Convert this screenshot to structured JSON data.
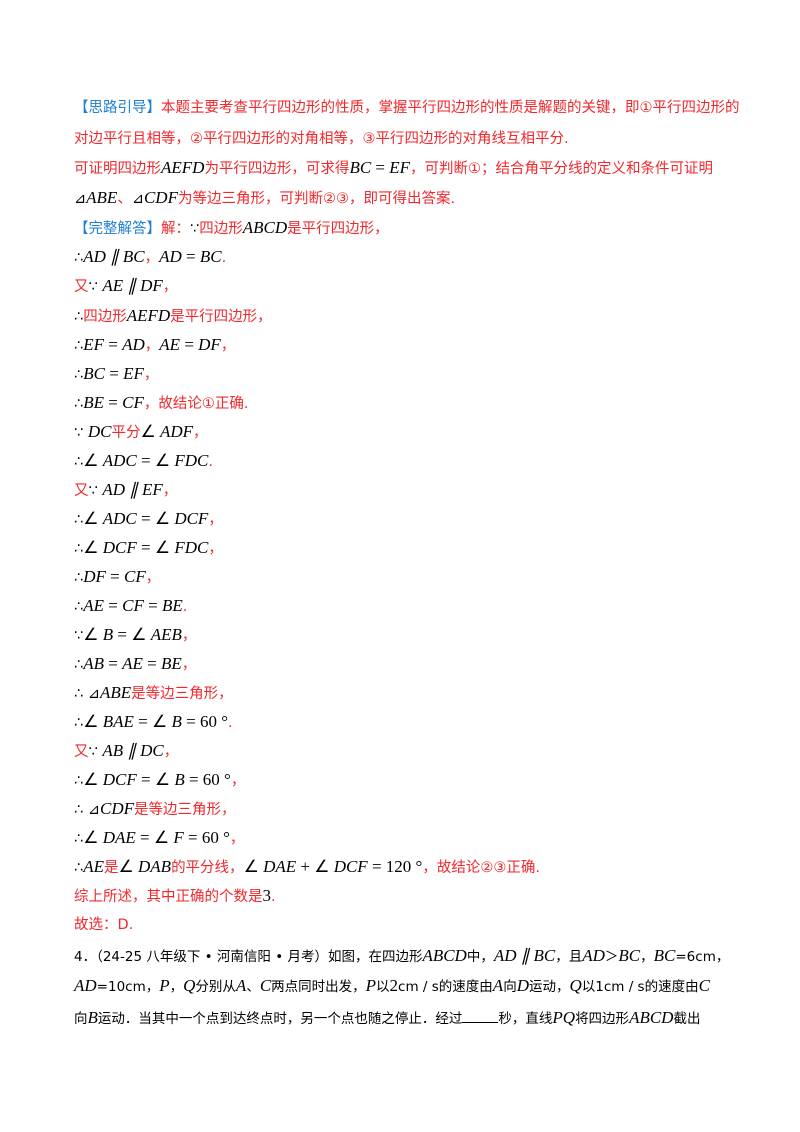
{
  "lines": [
    [
      [
        "b",
        "【思路引导】"
      ],
      [
        "r",
        "本题主要考查平行四边形的性质，掌握平行四边形的性质是解题的关键，即①平行四边形的"
      ]
    ],
    [
      [
        "r",
        "对边平行且相等，②平行四边形的对角相等，③平行四边形的对角线互相平分."
      ]
    ],
    [
      [
        "r",
        "可证明四边形"
      ],
      [
        "m",
        "AEFD"
      ],
      [
        "r",
        "为平行四边形，可求得"
      ],
      [
        "m",
        "BC"
      ],
      [
        "n",
        " = "
      ],
      [
        "m",
        "EF"
      ],
      [
        "r",
        "，可判断①；结合角平分线的定义和条件可证明"
      ]
    ],
    [
      [
        "k",
        "⊿"
      ],
      [
        "m",
        "ABE"
      ],
      [
        "r",
        "、"
      ],
      [
        "k",
        "⊿"
      ],
      [
        "m",
        "CDF"
      ],
      [
        "r",
        "为等边三角形，可判断②③，即可得出答案."
      ]
    ],
    [
      [
        "b",
        "【完整解答】"
      ],
      [
        "r",
        "解："
      ],
      [
        "k",
        "∵"
      ],
      [
        "r",
        "四边形"
      ],
      [
        "m",
        "ABCD"
      ],
      [
        "r",
        "是平行四边形，"
      ]
    ],
    [
      [
        "k",
        "∴"
      ],
      [
        "m",
        "AD ∥ BC"
      ],
      [
        "r",
        "，"
      ],
      [
        "m",
        "AD"
      ],
      [
        "n",
        " = "
      ],
      [
        "m",
        "BC"
      ],
      [
        "r",
        "."
      ]
    ],
    [
      [
        "r",
        "又"
      ],
      [
        "k",
        "∵ "
      ],
      [
        "m",
        "AE ∥ DF"
      ],
      [
        "r",
        "，"
      ]
    ],
    [
      [
        "k",
        "∴"
      ],
      [
        "r",
        "四边形"
      ],
      [
        "m",
        "AEFD"
      ],
      [
        "r",
        "是平行四边形，"
      ]
    ],
    [
      [
        "k",
        "∴"
      ],
      [
        "m",
        "EF"
      ],
      [
        "n",
        " = "
      ],
      [
        "m",
        "AD"
      ],
      [
        "r",
        "，"
      ],
      [
        "m",
        "AE"
      ],
      [
        "n",
        " = "
      ],
      [
        "m",
        "DF"
      ],
      [
        "r",
        "，"
      ]
    ],
    [
      [
        "k",
        "∴"
      ],
      [
        "m",
        "BC"
      ],
      [
        "n",
        " = "
      ],
      [
        "m",
        "EF"
      ],
      [
        "r",
        "，"
      ]
    ],
    [
      [
        "k",
        "∴"
      ],
      [
        "m",
        "BE"
      ],
      [
        "n",
        " = "
      ],
      [
        "m",
        "CF"
      ],
      [
        "r",
        "，故结论①正确."
      ]
    ],
    [
      [
        "k",
        "∵ "
      ],
      [
        "m",
        "DC"
      ],
      [
        "r",
        "平分"
      ],
      [
        "n",
        "∠ "
      ],
      [
        "m",
        "ADF"
      ],
      [
        "r",
        "，"
      ]
    ],
    [
      [
        "k",
        "∴"
      ],
      [
        "n",
        "∠ "
      ],
      [
        "m",
        "ADC"
      ],
      [
        "n",
        " = ∠ "
      ],
      [
        "m",
        "FDC"
      ],
      [
        "r",
        "."
      ]
    ],
    [
      [
        "r",
        "又"
      ],
      [
        "k",
        "∵ "
      ],
      [
        "m",
        "AD ∥ EF"
      ],
      [
        "r",
        "，"
      ]
    ],
    [
      [
        "k",
        "∴"
      ],
      [
        "n",
        "∠ "
      ],
      [
        "m",
        "ADC"
      ],
      [
        "n",
        " = ∠ "
      ],
      [
        "m",
        "DCF"
      ],
      [
        "r",
        "，"
      ]
    ],
    [
      [
        "k",
        "∴"
      ],
      [
        "n",
        "∠ "
      ],
      [
        "m",
        "DCF"
      ],
      [
        "n",
        " = ∠ "
      ],
      [
        "m",
        "FDC"
      ],
      [
        "r",
        "，"
      ]
    ],
    [
      [
        "k",
        "∴"
      ],
      [
        "m",
        "DF"
      ],
      [
        "n",
        " = "
      ],
      [
        "m",
        "CF"
      ],
      [
        "r",
        "，"
      ]
    ],
    [
      [
        "k",
        "∴"
      ],
      [
        "m",
        "AE"
      ],
      [
        "n",
        " = "
      ],
      [
        "m",
        "CF"
      ],
      [
        "n",
        " = "
      ],
      [
        "m",
        "BE"
      ],
      [
        "r",
        "."
      ]
    ],
    [
      [
        "k",
        "∵"
      ],
      [
        "n",
        "∠ "
      ],
      [
        "m",
        "B"
      ],
      [
        "n",
        " = ∠ "
      ],
      [
        "m",
        "AEB"
      ],
      [
        "r",
        "，"
      ]
    ],
    [
      [
        "k",
        "∴"
      ],
      [
        "m",
        "AB"
      ],
      [
        "n",
        " = "
      ],
      [
        "m",
        "AE"
      ],
      [
        "n",
        " = "
      ],
      [
        "m",
        "BE"
      ],
      [
        "r",
        "，"
      ]
    ],
    [
      [
        "k",
        "∴ ⊿"
      ],
      [
        "m",
        "ABE"
      ],
      [
        "r",
        "是等边三角形，"
      ]
    ],
    [
      [
        "k",
        "∴"
      ],
      [
        "n",
        "∠ "
      ],
      [
        "m",
        "BAE"
      ],
      [
        "n",
        " = ∠ "
      ],
      [
        "m",
        "B"
      ],
      [
        "n",
        " = 60 °"
      ],
      [
        "r",
        "."
      ]
    ],
    [
      [
        "r",
        "又"
      ],
      [
        "k",
        "∵ "
      ],
      [
        "m",
        "AB ∥ DC"
      ],
      [
        "r",
        "，"
      ]
    ],
    [
      [
        "k",
        "∴"
      ],
      [
        "n",
        "∠ "
      ],
      [
        "m",
        "DCF"
      ],
      [
        "n",
        " = ∠ "
      ],
      [
        "m",
        "B"
      ],
      [
        "n",
        " = 60 °"
      ],
      [
        "r",
        "，"
      ]
    ],
    [
      [
        "k",
        "∴ ⊿"
      ],
      [
        "m",
        "CDF"
      ],
      [
        "r",
        "是等边三角形，"
      ]
    ],
    [
      [
        "k",
        "∴"
      ],
      [
        "n",
        "∠ "
      ],
      [
        "m",
        "DAE"
      ],
      [
        "n",
        " = ∠ "
      ],
      [
        "m",
        "F"
      ],
      [
        "n",
        " = 60 °"
      ],
      [
        "r",
        "，"
      ]
    ],
    [
      [
        "k",
        "∴"
      ],
      [
        "m",
        "AE"
      ],
      [
        "r",
        "是"
      ],
      [
        "n",
        "∠ "
      ],
      [
        "m",
        "DAB"
      ],
      [
        "r",
        "的平分线，"
      ],
      [
        "n",
        "∠ "
      ],
      [
        "m",
        "DAE"
      ],
      [
        "n",
        " + ∠ "
      ],
      [
        "m",
        "DCF"
      ],
      [
        "n",
        " = 120 °"
      ],
      [
        "r",
        "，故结论②③正确."
      ]
    ],
    [
      [
        "r",
        "综上所述，其中正确的个数是"
      ],
      [
        "n",
        "3"
      ],
      [
        "r",
        "."
      ]
    ],
    [
      [
        "r",
        "故选：D."
      ]
    ],
    [
      [
        "q",
        "4．（24-25 八年级下 • 河南信阳 • 月考）如图，在四边形"
      ],
      [
        "m",
        "ABCD"
      ],
      [
        "q",
        "中，"
      ],
      [
        "m",
        "AD ∥ BC"
      ],
      [
        "q",
        "，且"
      ],
      [
        "m",
        "AD"
      ],
      [
        "q",
        "＞"
      ],
      [
        "m",
        "BC"
      ],
      [
        "q",
        "，"
      ],
      [
        "m",
        "BC"
      ],
      [
        "q",
        "=6cm，"
      ]
    ],
    [
      [
        "m",
        "AD"
      ],
      [
        "q",
        "=10cm，"
      ],
      [
        "m",
        "P"
      ],
      [
        "q",
        "，"
      ],
      [
        "m",
        "Q"
      ],
      [
        "q",
        "分别从"
      ],
      [
        "m",
        "A"
      ],
      [
        "q",
        "、"
      ],
      [
        "m",
        "C"
      ],
      [
        "q",
        "两点同时出发，"
      ],
      [
        "m",
        "P"
      ],
      [
        "q",
        "以"
      ],
      [
        "n",
        "2"
      ],
      [
        "q",
        "cm / s的速度由"
      ],
      [
        "m",
        "A"
      ],
      [
        "q",
        "向"
      ],
      [
        "m",
        "D"
      ],
      [
        "q",
        "运动，"
      ],
      [
        "m",
        "Q"
      ],
      [
        "q",
        "以1cm / s的速度由"
      ],
      [
        "m",
        "C"
      ]
    ],
    [
      [
        "q",
        "向"
      ],
      [
        "m",
        "B"
      ],
      [
        "q",
        "运动．当其中一个点到达终点时，另一个点也随之停止．经过"
      ],
      [
        "blank",
        ""
      ],
      [
        "q",
        "秒，直线"
      ],
      [
        "m",
        "PQ"
      ],
      [
        "q",
        "将四边形"
      ],
      [
        "m",
        "ABCD"
      ],
      [
        "q",
        "截出"
      ]
    ]
  ]
}
